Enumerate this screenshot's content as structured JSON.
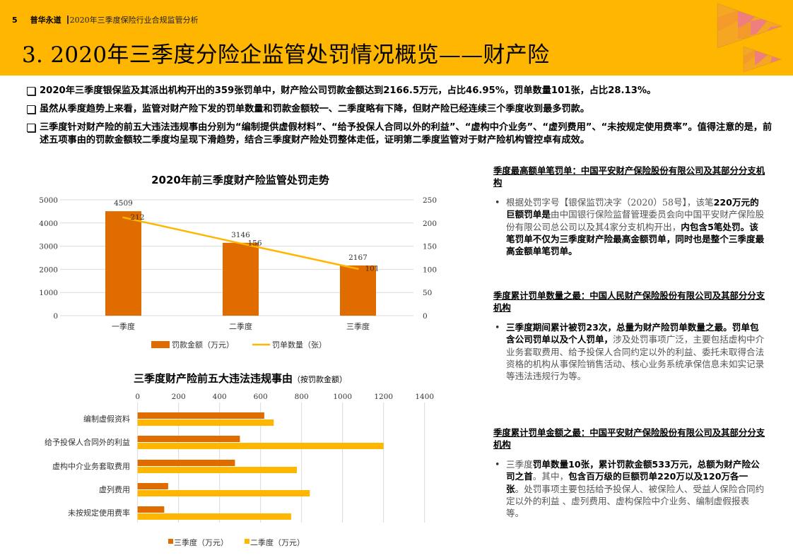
{
  "header": {
    "page_number": "5",
    "brand": "普华永道",
    "subtitle": "2020年三季度保险行业合规监管分析",
    "title": "3. 2020年三季度分险企监管处罚情况概览——财产险",
    "bg_color": "#FFB600"
  },
  "bullets": [
    "2020年三季度银保监及其派出机构开出的359张罚单中，财产险公司罚款金额达到2166.5万元，占比46.95%，罚单数量101张，占比28.13%。",
    "虽然从季度趋势上来看，监管对财产险下发的罚单数量和罚款金额较一、二季度略有下降，但财产险已经连续三个季度收到最多罚款。",
    "三季度针对财产险的前五大违法违规事由分别为“编制提供虚假材料”、“给予投保人合同以外的利益”、“虚构中介业务”、“虚列费用”、“未按规定使用费率”。值得注意的是，前述五项事由的罚款金额较二季度均呈现下滑趋势，结合三季度财产险处罚整体走低，证明第二季度监管对于财产险机构管控卓有成效。"
  ],
  "chart_data": [
    {
      "type": "bar+line",
      "title": "2020年前三季度财产险监管处罚走势",
      "categories": [
        "一季度",
        "二季度",
        "三季度"
      ],
      "series": [
        {
          "name": "罚款金额（万元）",
          "type": "bar",
          "axis": "left",
          "color": "#E06C00",
          "values": [
            4509,
            3146,
            2167
          ]
        },
        {
          "name": "罚单数量（张）",
          "type": "line",
          "axis": "right",
          "color": "#FFB600",
          "values": [
            212,
            156,
            101
          ]
        }
      ],
      "left_axis": {
        "ticks": [
          "0",
          "1000",
          "2000",
          "3000",
          "4000",
          "5000"
        ],
        "ylim": [
          0,
          5000
        ]
      },
      "right_axis": {
        "ticks": [
          "0",
          "50",
          "100",
          "150",
          "200",
          "250"
        ],
        "ylim": [
          0,
          250
        ]
      },
      "grid": true,
      "legend_position": "bottom"
    },
    {
      "type": "bar",
      "orientation": "horizontal",
      "title": "三季度财产险前五大违法违规事由",
      "subtitle": "（按罚款金额）",
      "categories": [
        "编制虚假资料",
        "给予投保人合同外的利益",
        "虚构中介业务套取费用",
        "虚列费用",
        "未按规定使用费率"
      ],
      "series": [
        {
          "name": "三季度（万元）",
          "color": "#E06C00",
          "values": [
            618,
            499,
            475,
            149,
            130
          ]
        },
        {
          "name": "二季度（万元）",
          "color": "#FFB600",
          "values": [
            664,
            1200,
            777,
            840,
            749
          ]
        }
      ],
      "x_axis": {
        "ticks": [
          "0",
          "200",
          "400",
          "600",
          "800",
          "1000",
          "1200",
          "1400"
        ],
        "xlim": [
          0,
          1400
        ],
        "position": "top"
      },
      "grid": true,
      "legend_position": "bottom"
    }
  ],
  "panel": [
    {
      "heading": "季度最高额单笔罚单：中国平安财产保险股份有限公司及其部分分支机构",
      "parts": [
        {
          "t": "根据处罚字号【银保监罚决字（2020）58号】，该笔",
          "b": false
        },
        {
          "t": "220万元的巨额罚单是",
          "b": true
        },
        {
          "t": "由中国银行保险监督管理委员会向中国平安财产保险股份有限公司总公司以及其4家分支机构开出，",
          "b": false
        },
        {
          "t": "内包含5笔处罚。该笔罚单不仅为三季度财产险最高金额罚单，同时也是整个三季度最高金额单笔罚单。",
          "b": true
        }
      ]
    },
    {
      "heading": "季度累计罚单数量之最：中国人民财产保险股份有限公司及其部分分支机构",
      "parts": [
        {
          "t": "三季度期间累计被罚23次，总量为财产险罚单数量之最。罚单包含公司罚单以及个人罚单，",
          "b": true
        },
        {
          "t": "涉及处罚事项广泛，主要包括虚构中介业务套取费用、给予投保人合同约定以外的利益、委托未取得合法资格的机构从事保险销售活动、核心业务系统承保信息未如实记录等违法违规行为等。",
          "b": false
        }
      ]
    },
    {
      "heading": "季度累计罚单金额之最：中国平安财产保险股份有限公司及其部分分支机构",
      "parts": [
        {
          "t": "三季度",
          "b": false
        },
        {
          "t": "罚单数量10张，累计罚款金额533万元，总额为财产险公司之首",
          "b": true
        },
        {
          "t": "。其中，",
          "b": false
        },
        {
          "t": "包含百万级的巨额罚单220万以及120万各一张",
          "b": true
        },
        {
          "t": "。处罚事项主要包括给予投保人、被保险人、受益人保险合同约定以外的利益 、虚列费用、虚构保险中介业务、编制虚假报表等。",
          "b": false
        }
      ]
    }
  ]
}
